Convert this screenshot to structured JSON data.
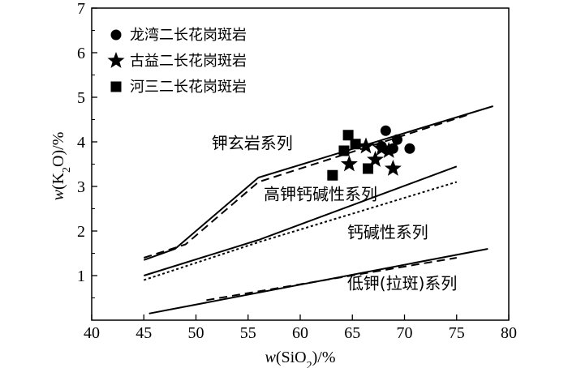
{
  "chart_data": {
    "type": "scatter",
    "title": "",
    "xlabel_prefix": "w(SiO",
    "xlabel_sub": "2",
    "xlabel_suffix": ")/%",
    "ylabel_prefix": "w(K",
    "ylabel_sub": "2",
    "ylabel_suffix": "O)/%",
    "xlim": [
      40,
      80
    ],
    "ylim": [
      0,
      7
    ],
    "xticks": [
      "40",
      "45",
      "50",
      "55",
      "60",
      "65",
      "70",
      "75",
      "80"
    ],
    "yticks": [
      "1",
      "2",
      "3",
      "4",
      "5",
      "6",
      "7"
    ],
    "legend": {
      "position": "top-left",
      "entries": [
        {
          "marker": "circle",
          "label": "龙湾二长花岗斑岩"
        },
        {
          "marker": "star",
          "label": "古益二长花岗斑岩"
        },
        {
          "marker": "square",
          "label": "河三二长花岗斑岩"
        }
      ]
    },
    "boundary_lines": [
      {
        "style": "solid",
        "points": [
          [
            45,
            1.35
          ],
          [
            48,
            1.6
          ],
          [
            56,
            3.2
          ],
          [
            78.5,
            4.8
          ]
        ]
      },
      {
        "style": "dashed",
        "points": [
          [
            45,
            1.4
          ],
          [
            49,
            1.7
          ],
          [
            56,
            3.1
          ],
          [
            76,
            4.6
          ]
        ]
      },
      {
        "style": "solid",
        "points": [
          [
            45,
            1.0
          ],
          [
            56,
            1.8
          ],
          [
            75,
            3.45
          ]
        ]
      },
      {
        "style": "dotted",
        "points": [
          [
            45,
            0.9
          ],
          [
            56,
            1.75
          ],
          [
            75,
            3.1
          ]
        ]
      },
      {
        "style": "solid",
        "points": [
          [
            45.5,
            0.15
          ],
          [
            78,
            1.6
          ]
        ]
      },
      {
        "style": "dashed",
        "points": [
          [
            51,
            0.45
          ],
          [
            75,
            1.4
          ]
        ]
      }
    ],
    "region_labels": [
      {
        "text": "钾玄岩系列",
        "x": 51.5,
        "y": 3.85
      },
      {
        "text": "高钾钙碱性系列",
        "x": 56.5,
        "y": 2.7
      },
      {
        "text": "钙碱性系列",
        "x": 64.5,
        "y": 1.85
      },
      {
        "text": "低钾(拉斑)系列",
        "x": 64.5,
        "y": 0.7
      }
    ],
    "series": [
      {
        "name": "龙湾二长花岗斑岩",
        "marker": "circle",
        "points": [
          [
            68.2,
            4.25
          ],
          [
            69.3,
            4.05
          ],
          [
            68.9,
            3.85
          ],
          [
            70.5,
            3.85
          ],
          [
            67.8,
            3.9
          ]
        ]
      },
      {
        "name": "古益二长花岗斑岩",
        "marker": "star",
        "points": [
          [
            66.3,
            3.9
          ],
          [
            67.8,
            3.85
          ],
          [
            68.5,
            3.8
          ],
          [
            67.2,
            3.6
          ],
          [
            64.7,
            3.5
          ],
          [
            68.9,
            3.4
          ]
        ]
      },
      {
        "name": "河三二长花岗斑岩",
        "marker": "square",
        "points": [
          [
            64.6,
            4.15
          ],
          [
            65.3,
            3.95
          ],
          [
            64.2,
            3.8
          ],
          [
            66.5,
            3.4
          ],
          [
            63.1,
            3.25
          ]
        ]
      }
    ]
  }
}
